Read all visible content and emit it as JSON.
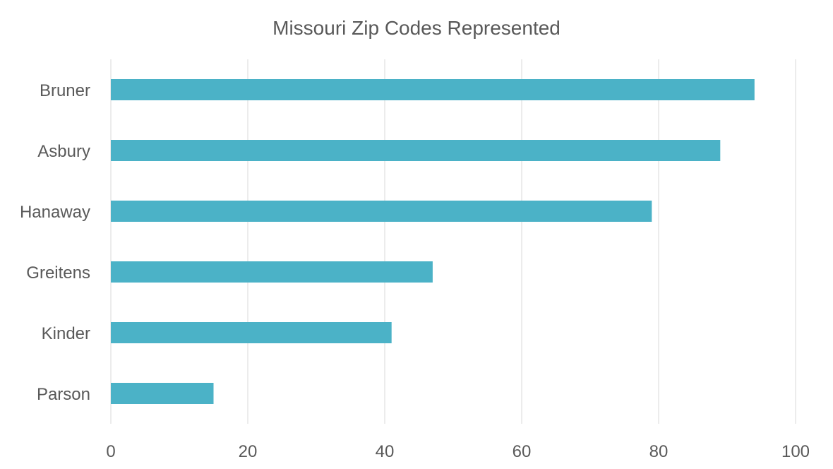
{
  "chart_data": {
    "type": "bar",
    "orientation": "horizontal",
    "title": "Missouri Zip Codes Represented",
    "categories": [
      "Bruner",
      "Asbury",
      "Hanaway",
      "Greitens",
      "Kinder",
      "Parson"
    ],
    "values": [
      94,
      89,
      79,
      47,
      41,
      15
    ],
    "xlim": [
      0,
      100
    ],
    "xticks": [
      "0",
      "20",
      "40",
      "60",
      "80",
      "100"
    ],
    "xlabel": "",
    "ylabel": "",
    "grid": "vertical",
    "legend": "none",
    "colors": {
      "bar": "#4BB2C7",
      "grid": "#D9D9D9",
      "text": "#595959"
    }
  }
}
